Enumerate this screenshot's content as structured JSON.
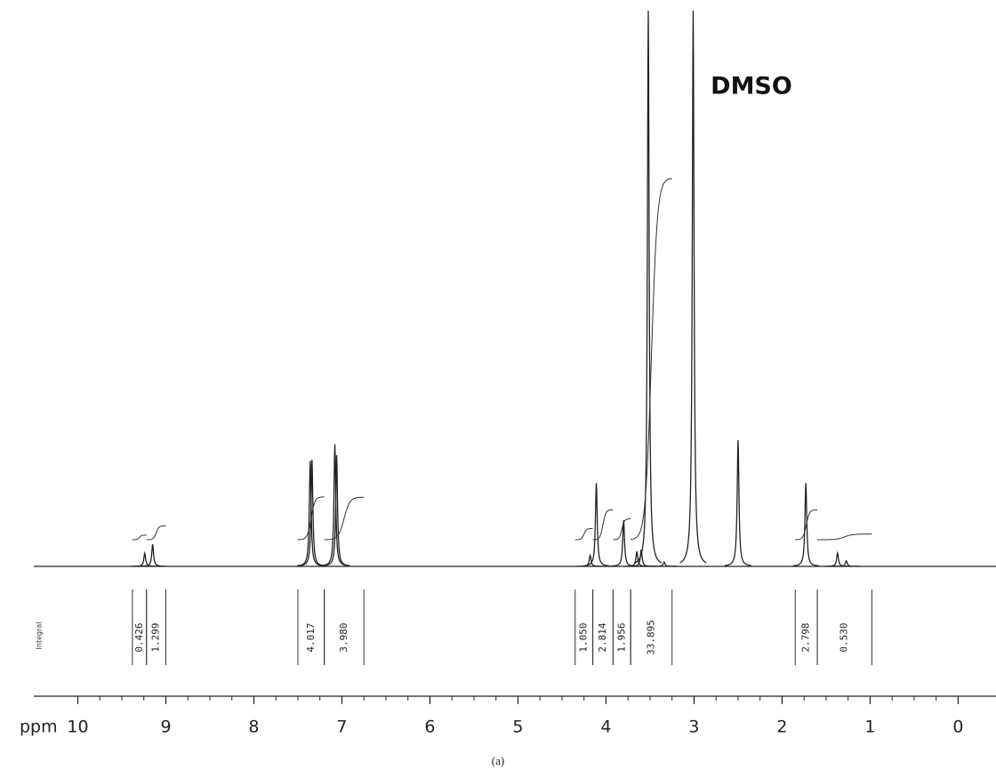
{
  "chart_data": {
    "type": "nmr",
    "x_label": "ppm",
    "annotation": "DMSO",
    "integral_title": "Integral",
    "caption": "(a)",
    "xlim": [
      10.5,
      -0.43
    ],
    "xticks": [
      10,
      9,
      8,
      7,
      6,
      5,
      4,
      3,
      2,
      1,
      0
    ],
    "minor_ticks": true,
    "ylim": [
      0,
      100
    ],
    "color": "#222222",
    "x": [
      9.24,
      9.15,
      7.36,
      7.34,
      7.08,
      7.06,
      4.18,
      4.11,
      3.8,
      3.65,
      3.6,
      3.52,
      3.34,
      3.01,
      2.5,
      1.73,
      1.37,
      1.27
    ],
    "values": [
      2.4,
      4,
      19,
      19.2,
      22,
      20,
      2,
      15,
      8.3,
      2.7,
      3,
      100,
      0.8,
      100,
      22.7,
      15,
      2.4,
      1
    ],
    "integrals": {
      "from": [
        9.38,
        9.22,
        7.5,
        7.2,
        4.35,
        4.15,
        3.92,
        3.72,
        1.85,
        1.6
      ],
      "to": [
        9.22,
        9.0,
        7.2,
        6.75,
        4.15,
        3.92,
        3.72,
        3.25,
        1.6,
        0.98
      ],
      "values": [
        0.426,
        1.299,
        4.017,
        3.98,
        1.05,
        2.814,
        1.956,
        33.895,
        2.798,
        0.53
      ],
      "value_labels": [
        "0.426",
        "1.299",
        "4.017",
        "3.980",
        "1.050",
        "2.814",
        "1.956",
        "33.895",
        "2.798",
        "0.530"
      ]
    }
  }
}
